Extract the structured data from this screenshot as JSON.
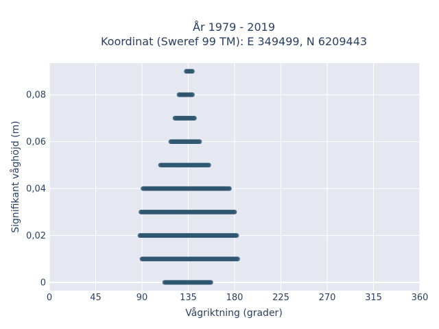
{
  "chart_data": {
    "type": "scatter",
    "title_line1": "År 1979 - 2019",
    "title_line2": "Koordinat (Sweref 99 TM): E 349499, N 6209443",
    "xlabel": "Vågriktning (grader)",
    "ylabel": "Signifikant våghöjd (m)",
    "xlim": [
      0,
      360
    ],
    "ylim": [
      -0.0035,
      0.0935
    ],
    "x_ticks": [
      0,
      45,
      90,
      135,
      180,
      225,
      270,
      315,
      360
    ],
    "x_tick_labels": [
      "0",
      "45",
      "90",
      "135",
      "180",
      "225",
      "270",
      "315",
      "360"
    ],
    "y_ticks": [
      0,
      0.02,
      0.04,
      0.06,
      0.08
    ],
    "y_tick_labels": [
      "0",
      "0,02",
      "0,04",
      "0,06",
      "0,08"
    ],
    "grid": true,
    "marker_color": "#2f5670",
    "background_color": "#e5e8f0",
    "bands": [
      {
        "y": 0.0,
        "x_min": 112,
        "x_max": 157
      },
      {
        "y": 0.01,
        "x_min": 90,
        "x_max": 183
      },
      {
        "y": 0.02,
        "x_min": 88,
        "x_max": 182
      },
      {
        "y": 0.03,
        "x_min": 89,
        "x_max": 180
      },
      {
        "y": 0.04,
        "x_min": 91,
        "x_max": 175
      },
      {
        "y": 0.05,
        "x_min": 108,
        "x_max": 155
      },
      {
        "y": 0.06,
        "x_min": 118,
        "x_max": 146
      },
      {
        "y": 0.07,
        "x_min": 122,
        "x_max": 141
      },
      {
        "y": 0.08,
        "x_min": 126,
        "x_max": 139
      },
      {
        "y": 0.09,
        "x_min": 133,
        "x_max": 139
      }
    ]
  }
}
